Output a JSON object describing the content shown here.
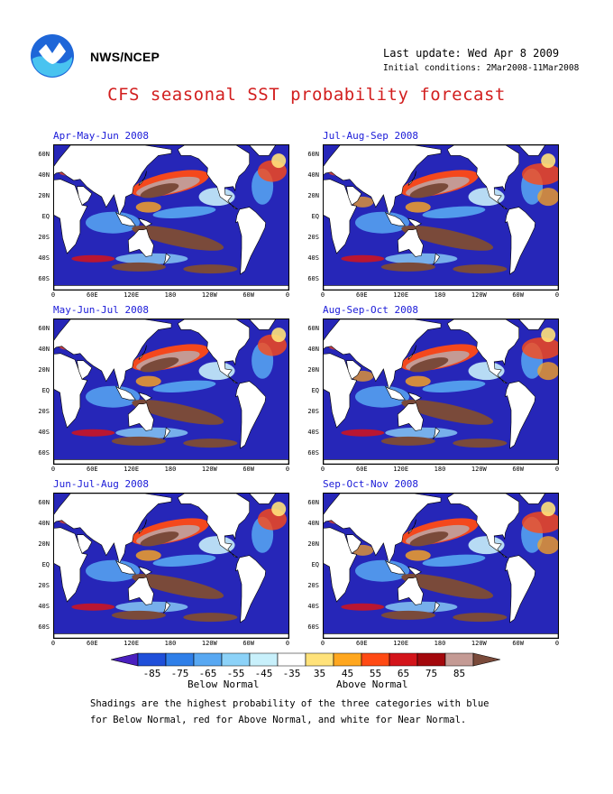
{
  "header": {
    "org": "NWS/NCEP",
    "last_update": "Last update: Wed Apr  8 2009",
    "initial_conditions": "Initial conditions: 2Mar2008-11Mar2008",
    "title": "CFS seasonal SST probability forecast"
  },
  "panels": [
    {
      "title": "Apr-May-Jun 2008"
    },
    {
      "title": "Jul-Aug-Sep 2008"
    },
    {
      "title": "May-Jun-Jul 2008"
    },
    {
      "title": "Aug-Sep-Oct 2008"
    },
    {
      "title": "Jun-Jul-Aug 2008"
    },
    {
      "title": "Sep-Oct-Nov 2008"
    }
  ],
  "lat_labels": [
    "60N",
    "40N",
    "20N",
    "EQ",
    "20S",
    "40S",
    "60S"
  ],
  "lon_labels": [
    "0",
    "60E",
    "120E",
    "180",
    "120W",
    "60W",
    "0"
  ],
  "colorbar": {
    "ticks": [
      "-85",
      "-75",
      "-65",
      "-55",
      "-45",
      "-35",
      "35",
      "45",
      "55",
      "65",
      "75",
      "85"
    ],
    "colors": [
      "#4a1fbf",
      "#1f4fd9",
      "#2f7fe8",
      "#58a8f2",
      "#8cd2f8",
      "#c8f0fb",
      "#ffffff",
      "#ffe27a",
      "#ffa71f",
      "#ff4a14",
      "#d3141a",
      "#a3080c",
      "#c49a94",
      "#7a4a3a"
    ],
    "below_label": "Below Normal",
    "above_label": "Above Normal"
  },
  "notes": {
    "line1": "Shadings are the highest probability of the three categories with blue",
    "line2": "for Below Normal, red for Above Normal, and white for Near Normal."
  }
}
